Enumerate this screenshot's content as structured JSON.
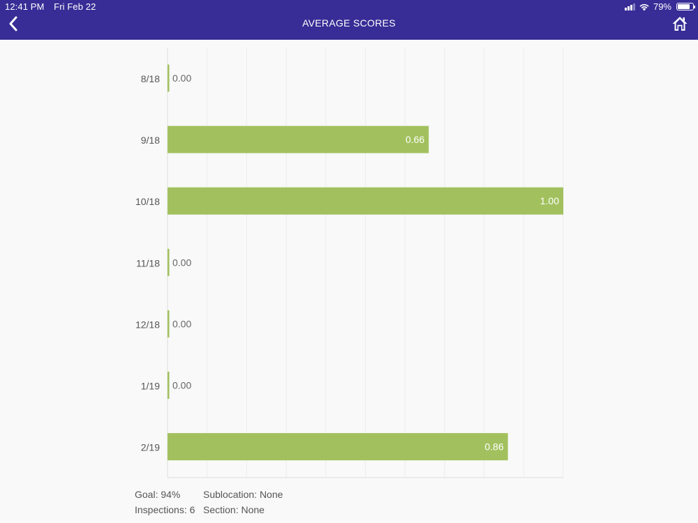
{
  "status_bar": {
    "time": "12:41 PM",
    "date": "Fri Feb 22",
    "battery": "79%",
    "battery_level": 0.79
  },
  "header": {
    "title": "AVERAGE SCORES",
    "back_icon": "chevron-left-icon",
    "home_icon": "home-icon",
    "background": "#382d96"
  },
  "chart_data": {
    "type": "bar",
    "orientation": "horizontal",
    "categories": [
      "8/18",
      "9/18",
      "10/18",
      "11/18",
      "12/18",
      "1/19",
      "2/19"
    ],
    "values": [
      0.0,
      0.66,
      1.0,
      0.0,
      0.0,
      0.0,
      0.86
    ],
    "value_labels": [
      "0.00",
      "0.66",
      "1.00",
      "0.00",
      "0.00",
      "0.00",
      "0.86"
    ],
    "xlim": [
      0,
      1
    ],
    "bar_color": "#a2c15e",
    "grid": true
  },
  "footer": {
    "goal": "Goal: 94%",
    "inspections": "Inspections: 6",
    "sublocation": "Sublocation: None",
    "section": "Section: None"
  }
}
